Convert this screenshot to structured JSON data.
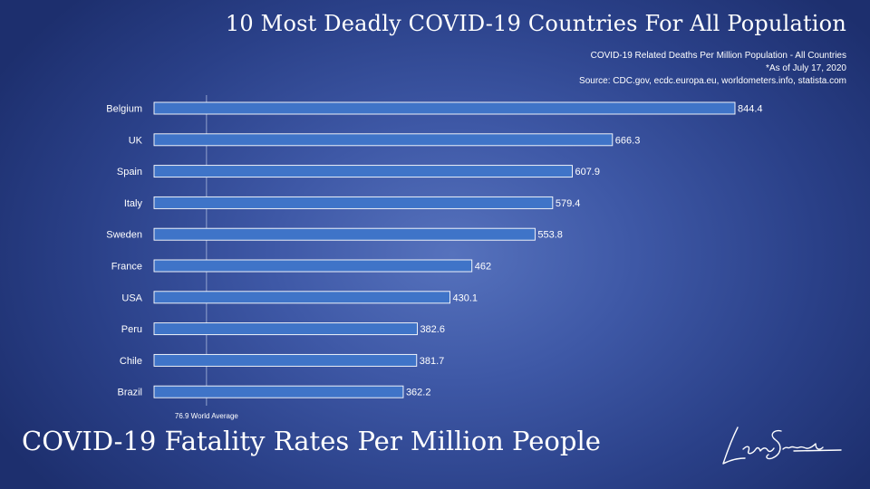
{
  "header": {
    "title": "10 Most Deadly COVID-19 Countries For All Population",
    "subtitle": "COVID-19 Related Deaths Per Million Population - All Countries",
    "date_note": "*As of July 17, 2020",
    "source": "Source: CDC.gov, ecdc.europa.eu, worldometers.info, statista.com"
  },
  "footer": {
    "title": "COVID-19 Fatality Rates Per Million People"
  },
  "colors": {
    "bar_fill": "#3f74c8",
    "bar_stroke": "#ffffff",
    "text": "#ffffff"
  },
  "chart_data": {
    "type": "bar",
    "orientation": "horizontal",
    "categories": [
      "Belgium",
      "UK",
      "Spain",
      "Italy",
      "Sweden",
      "France",
      "USA",
      "Peru",
      "Chile",
      "Brazil"
    ],
    "values": [
      844.4,
      666.3,
      607.9,
      579.4,
      553.8,
      462,
      430.1,
      382.6,
      381.7,
      362.2
    ],
    "value_labels": [
      "844.4",
      "666.3",
      "607.9",
      "579.4",
      "553.8",
      "462",
      "430.1",
      "382.6",
      "381.7",
      "362.2"
    ],
    "reference_line": {
      "value": 76.9,
      "label": "76.9 World Average"
    },
    "xlim": [
      0,
      844.4
    ],
    "grid": false,
    "legend": "none"
  }
}
